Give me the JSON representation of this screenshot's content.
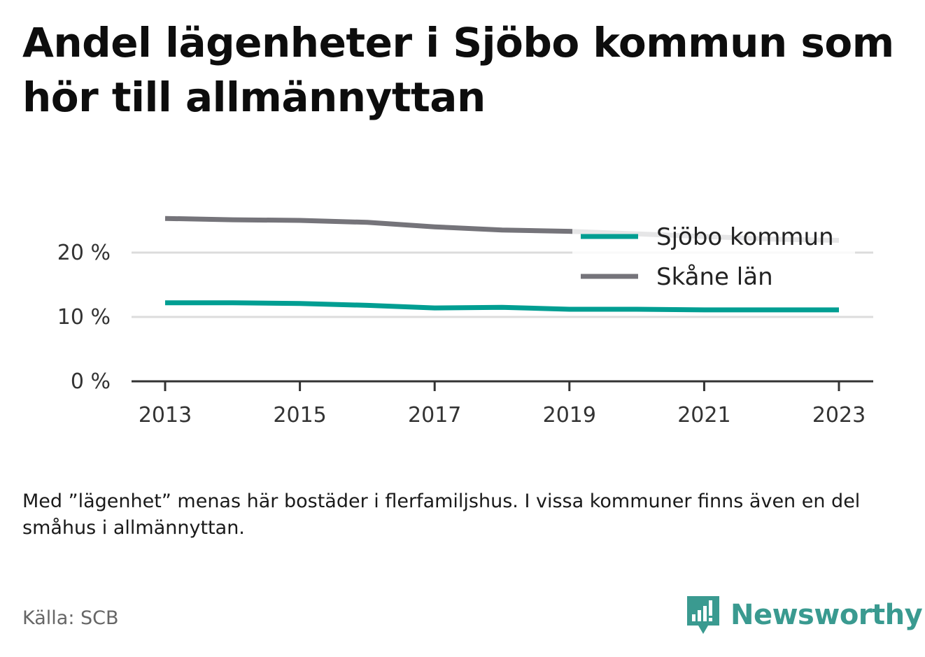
{
  "title": "Andel lägenheter i Sjöbo kommun som hör till allmännyttan",
  "note": "Med ”lägenhet” menas här bostäder i flerfamiljshus. I vissa kommuner finns även en del småhus i allmännyttan.",
  "source": "Källa: SCB",
  "brand": {
    "name": "Newsworthy",
    "icon": "newsworthy-logo-icon",
    "color": "#3a9a90"
  },
  "chart_data": {
    "type": "line",
    "title": "Andel lägenheter i Sjöbo kommun som hör till allmännyttan",
    "x": [
      2013,
      2014,
      2015,
      2016,
      2017,
      2018,
      2019,
      2020,
      2021,
      2022,
      2023
    ],
    "x_ticks": [
      "2013",
      "2015",
      "2017",
      "2019",
      "2021",
      "2023"
    ],
    "y_ticks": [
      "0 %",
      "10 %",
      "20 %"
    ],
    "ylim": [
      0,
      27
    ],
    "grid": true,
    "legend_position": "top-right",
    "series": [
      {
        "name": "Sjöbo kommun",
        "color": "#009e92",
        "values": [
          12.2,
          12.2,
          12.1,
          11.8,
          11.4,
          11.5,
          11.2,
          11.2,
          11.1,
          11.1,
          11.1
        ]
      },
      {
        "name": "Skåne län",
        "color": "#75747a",
        "values": [
          25.3,
          25.1,
          25.0,
          24.7,
          24.0,
          23.5,
          23.3,
          22.9,
          22.5,
          22.1,
          21.9
        ]
      }
    ]
  }
}
